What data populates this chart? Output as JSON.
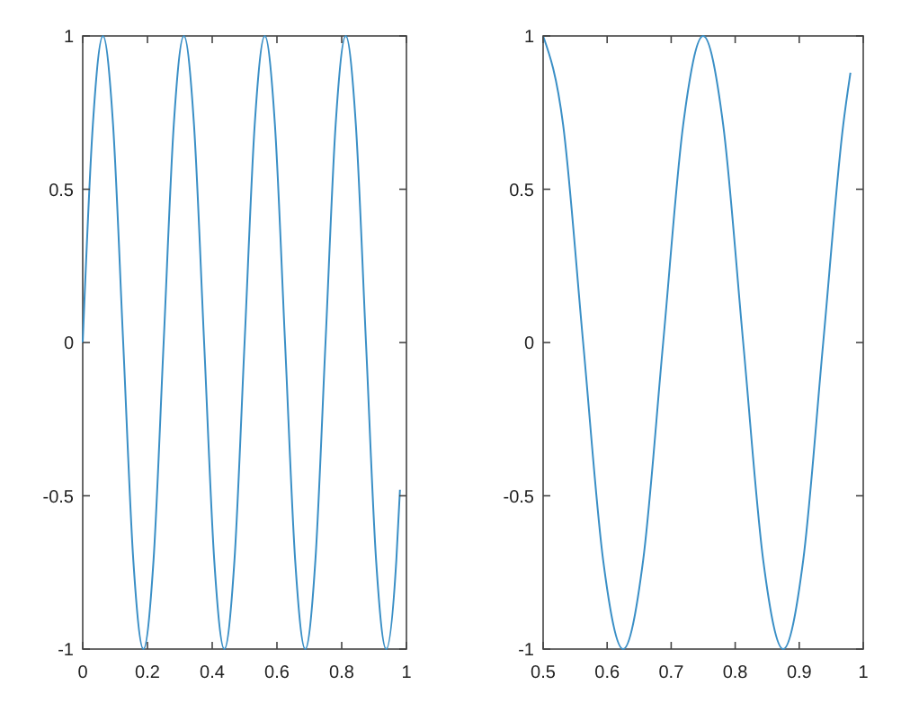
{
  "chart_data": [
    {
      "type": "line",
      "x": [
        0,
        0.03125,
        0.0625,
        0.09375,
        0.125,
        0.15625,
        0.1875,
        0.21875,
        0.25,
        0.28125,
        0.3125,
        0.34375,
        0.375,
        0.40625,
        0.4375,
        0.46875,
        0.5,
        0.53125,
        0.5625,
        0.59375,
        0.625,
        0.65625,
        0.6875,
        0.71875,
        0.75,
        0.78125,
        0.8125,
        0.84375,
        0.875,
        0.90625,
        0.9375,
        0.96875,
        0.98
      ],
      "series": [
        {
          "color": "#3a8fc6",
          "values": [
            0,
            0.71,
            1,
            0.71,
            0,
            -0.71,
            -1,
            -0.71,
            0,
            0.71,
            1,
            0.71,
            0,
            -0.71,
            -1,
            -0.71,
            0,
            0.71,
            1,
            0.71,
            0,
            -0.71,
            -1,
            -0.71,
            0,
            0.71,
            1,
            0.71,
            0,
            -0.71,
            -1,
            -0.71,
            -0.48
          ]
        }
      ],
      "xlim": [
        0,
        1
      ],
      "ylim": [
        -1,
        1
      ],
      "xticks": [
        0,
        0.2,
        0.4,
        0.6,
        0.8,
        1
      ],
      "yticks": [
        -1,
        -0.5,
        0,
        0.5,
        1
      ]
    },
    {
      "type": "line",
      "x": [
        0.5,
        0.53125,
        0.5625,
        0.59375,
        0.625,
        0.65625,
        0.6875,
        0.71875,
        0.75,
        0.78125,
        0.8125,
        0.84375,
        0.875,
        0.90625,
        0.9375,
        0.96875,
        0.98
      ],
      "series": [
        {
          "color": "#3a8fc6",
          "values": [
            1,
            0.71,
            0,
            -0.71,
            -1,
            -0.71,
            0,
            0.71,
            1,
            0.71,
            0,
            -0.71,
            -1,
            -0.71,
            0,
            0.71,
            0.88
          ]
        }
      ],
      "xlim": [
        0.5,
        1
      ],
      "ylim": [
        -1,
        1
      ],
      "xticks": [
        0.5,
        0.6,
        0.7,
        0.8,
        0.9,
        1
      ],
      "yticks": [
        -1,
        -0.5,
        0,
        0.5,
        1
      ]
    }
  ]
}
